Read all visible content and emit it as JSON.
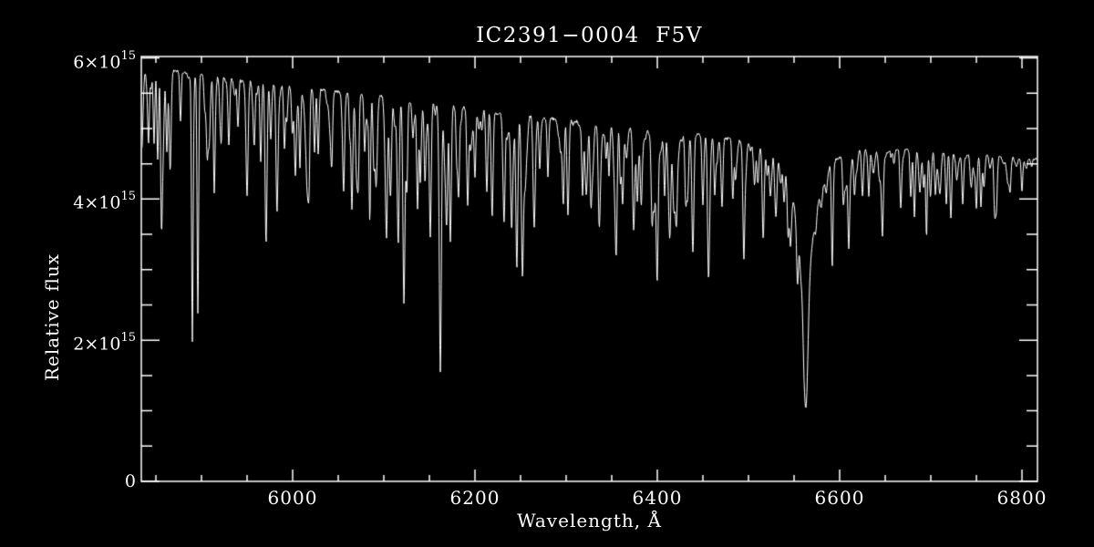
{
  "chart_data": {
    "type": "line",
    "title": "IC2391−0004  F5V",
    "xlabel": "Wavelength, Å",
    "ylabel": "Relative flux",
    "xlim": [
      5834,
      6817
    ],
    "ylim": [
      0,
      6020000000000000.0
    ],
    "grid": false,
    "legend": "none",
    "background_color": "#000000",
    "axis_color": "#ffffff",
    "line_color": "#ffffff",
    "x_ticks": [
      {
        "v": 6000,
        "label": "6000"
      },
      {
        "v": 6200,
        "label": "6200"
      },
      {
        "v": 6400,
        "label": "6400"
      },
      {
        "v": 6600,
        "label": "6600"
      },
      {
        "v": 6800,
        "label": "6800"
      }
    ],
    "x_minor_step": 50,
    "y_ticks": [
      {
        "v": 0,
        "base": "0",
        "sup": ""
      },
      {
        "v": 2000000000000000.0,
        "base": "2×10",
        "sup": "15"
      },
      {
        "v": 4000000000000000.0,
        "base": "4×10",
        "sup": "15"
      },
      {
        "v": 6000000000000000.0,
        "base": "6×10",
        "sup": "15"
      }
    ],
    "y_minor_step": 500000000000000.0,
    "flux_unit": 1000000000000000.0,
    "continuum_anchors": [
      [
        5834,
        5.87
      ],
      [
        5900,
        5.77
      ],
      [
        6000,
        5.6
      ],
      [
        6100,
        5.45
      ],
      [
        6200,
        5.28
      ],
      [
        6300,
        5.12
      ],
      [
        6400,
        4.98
      ],
      [
        6500,
        4.87
      ],
      [
        6600,
        4.8
      ],
      [
        6700,
        4.7
      ],
      [
        6817,
        4.57
      ]
    ],
    "halpha": {
      "center": 6563,
      "core_depth": 0.38,
      "core_sigma": 2.2,
      "wing_depth": 0.4,
      "wing_gamma": 12,
      "min_flux": 1030000000000000.0
    },
    "na_d": {
      "lines": [
        5890,
        5896
      ],
      "min_flux": 2200000000000000.0
    },
    "absorption_lines": [
      [
        5842,
        0.16,
        0.9
      ],
      [
        5848,
        0.12,
        0.8
      ],
      [
        5852,
        0.22,
        0.9
      ],
      [
        5856,
        0.3,
        0.9
      ],
      [
        5862,
        0.2,
        0.9
      ],
      [
        5877,
        0.12,
        0.8
      ],
      [
        5890,
        0.62,
        0.85
      ],
      [
        5896,
        0.56,
        0.85
      ],
      [
        5906,
        0.12,
        0.8
      ],
      [
        5914,
        0.28,
        0.95
      ],
      [
        5922,
        0.12,
        0.8
      ],
      [
        5930,
        0.14,
        0.9
      ],
      [
        5940,
        0.12,
        0.9
      ],
      [
        5950,
        0.22,
        1.0
      ],
      [
        5958,
        0.14,
        0.9
      ],
      [
        5965,
        0.2,
        0.9
      ],
      [
        5976,
        0.14,
        0.9
      ],
      [
        5983,
        0.24,
        1.0
      ],
      [
        5991,
        0.16,
        0.9
      ],
      [
        6003,
        0.22,
        1.0
      ],
      [
        6008,
        0.2,
        0.9
      ],
      [
        6018,
        0.18,
        0.9
      ],
      [
        6024,
        0.16,
        0.9
      ],
      [
        6028,
        0.14,
        0.9
      ],
      [
        6043,
        0.16,
        0.9
      ],
      [
        6056,
        0.14,
        0.9
      ],
      [
        6065,
        0.3,
        1.0
      ],
      [
        6079,
        0.14,
        0.9
      ],
      [
        6089,
        0.16,
        0.9
      ],
      [
        6103,
        0.32,
        1.0
      ],
      [
        6116,
        0.22,
        1.0
      ],
      [
        6122,
        0.5,
        1.1
      ],
      [
        6137,
        0.28,
        1.0
      ],
      [
        6145,
        0.18,
        0.9
      ],
      [
        6151,
        0.3,
        1.0
      ],
      [
        6162,
        0.53,
        1.1
      ],
      [
        6169,
        0.28,
        1.0
      ],
      [
        6173,
        0.28,
        1.0
      ],
      [
        6180,
        0.14,
        0.9
      ],
      [
        6192,
        0.26,
        1.0
      ],
      [
        6200,
        0.18,
        0.9
      ],
      [
        6213,
        0.22,
        1.0
      ],
      [
        6219,
        0.24,
        1.0
      ],
      [
        6232,
        0.28,
        1.0
      ],
      [
        6240,
        0.18,
        0.9
      ],
      [
        6246,
        0.26,
        1.0
      ],
      [
        6252,
        0.24,
        1.0
      ],
      [
        6265,
        0.2,
        1.0
      ],
      [
        6271,
        0.14,
        0.9
      ],
      [
        6280,
        0.16,
        0.9
      ],
      [
        6297,
        0.18,
        0.9
      ],
      [
        6302,
        0.26,
        1.0
      ],
      [
        6318,
        0.2,
        0.9
      ],
      [
        6327,
        0.16,
        0.9
      ],
      [
        6336,
        0.22,
        1.0
      ],
      [
        6347,
        0.14,
        0.9
      ],
      [
        6355,
        0.22,
        1.0
      ],
      [
        6362,
        0.2,
        1.0
      ],
      [
        6378,
        0.14,
        0.9
      ],
      [
        6394,
        0.18,
        0.9
      ],
      [
        6400,
        0.3,
        1.1
      ],
      [
        6408,
        0.18,
        0.9
      ],
      [
        6414,
        0.24,
        1.0
      ],
      [
        6421,
        0.22,
        1.0
      ],
      [
        6431,
        0.16,
        0.9
      ],
      [
        6439,
        0.34,
        1.1
      ],
      [
        6450,
        0.2,
        1.0
      ],
      [
        6456,
        0.22,
        1.0
      ],
      [
        6463,
        0.16,
        0.9
      ],
      [
        6471,
        0.2,
        1.0
      ],
      [
        6483,
        0.14,
        0.9
      ],
      [
        6495,
        0.26,
        1.0
      ],
      [
        6516,
        0.22,
        1.0
      ],
      [
        6546,
        0.12,
        0.9
      ],
      [
        6592,
        0.18,
        0.95
      ],
      [
        6604,
        0.14,
        0.9
      ],
      [
        6610,
        0.22,
        1.0
      ],
      [
        6625,
        0.1,
        0.9
      ],
      [
        6632,
        0.14,
        0.9
      ],
      [
        6647,
        0.14,
        0.9
      ],
      [
        6667,
        0.17,
        0.95
      ],
      [
        6678,
        0.14,
        0.9
      ],
      [
        6682,
        0.2,
        0.95
      ],
      [
        6695,
        0.1,
        0.9
      ],
      [
        6705,
        0.12,
        0.9
      ],
      [
        6717,
        0.16,
        0.95
      ],
      [
        6722,
        0.2,
        0.95
      ],
      [
        6735,
        0.14,
        0.9
      ],
      [
        6750,
        0.14,
        0.9
      ],
      [
        6755,
        0.16,
        0.9
      ],
      [
        6770,
        0.16,
        0.9
      ],
      [
        6787,
        0.1,
        0.9
      ],
      [
        6800,
        0.1,
        0.9
      ]
    ],
    "noise": {
      "seed": 7,
      "n_weak_lines": 290,
      "weak_depth_mean": 0.052,
      "weak_depth_max": 0.28,
      "pixel_noise": 0.004
    }
  }
}
